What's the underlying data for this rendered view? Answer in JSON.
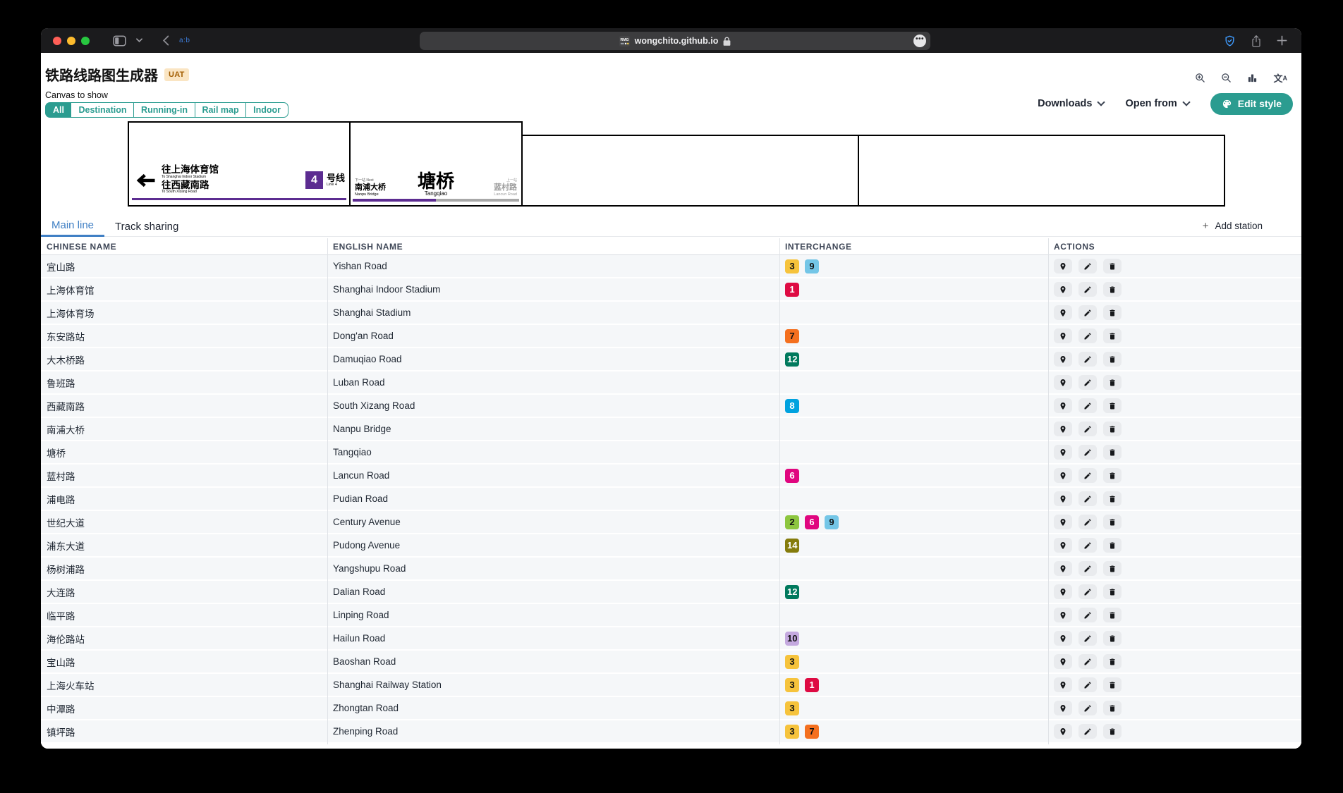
{
  "browser": {
    "url": "wongchito.github.io",
    "tab_hint": "a:b",
    "more_dots": "•••"
  },
  "app": {
    "title": "铁路线路图生成器",
    "env_badge": "UAT"
  },
  "canvas_filter": {
    "label": "Canvas to show",
    "options": [
      "All",
      "Destination",
      "Running-in",
      "Rail map",
      "Indoor"
    ],
    "active": "All"
  },
  "actions_bar": {
    "downloads": "Downloads",
    "open_from": "Open from",
    "edit_style": "Edit style"
  },
  "preview": {
    "destination": {
      "line1_zh": "往上海体育馆",
      "line1_en": "To Shanghai Indoor Stadium",
      "line2_zh": "往西藏南路",
      "line2_en": "To South Xizang Road",
      "line_number": "4",
      "line_label_zh": "号线",
      "line_label_en": "Line 4",
      "line_color": "#5c2c91"
    },
    "running_in": {
      "prev_label": "下一站 Next",
      "prev_zh": "南浦大桥",
      "prev_en": "Nanpu Bridge",
      "current_zh": "塘桥",
      "current_en": "Tangqiao",
      "next_label": "上一站",
      "next_zh": "蓝村路",
      "next_en": "Lancun Road",
      "bar_left_color": "#5c2c91",
      "bar_right_color": "#a8a8a8"
    }
  },
  "tabs": {
    "main_line": "Main line",
    "track_sharing": "Track sharing",
    "add_station": "Add station"
  },
  "table": {
    "headers": [
      "CHINESE NAME",
      "ENGLISH NAME",
      "INTERCHANGE",
      "ACTIONS"
    ],
    "rows": [
      {
        "zh": "宜山路",
        "en": "Yishan Road",
        "interchanges": [
          "3",
          "9"
        ]
      },
      {
        "zh": "上海体育馆",
        "en": "Shanghai Indoor Stadium",
        "interchanges": [
          "1"
        ]
      },
      {
        "zh": "上海体育场",
        "en": "Shanghai Stadium",
        "interchanges": []
      },
      {
        "zh": "东安路站",
        "en": "Dong'an Road",
        "interchanges": [
          "7"
        ]
      },
      {
        "zh": "大木桥路",
        "en": "Damuqiao Road",
        "interchanges": [
          "12"
        ]
      },
      {
        "zh": "鲁班路",
        "en": "Luban Road",
        "interchanges": []
      },
      {
        "zh": "西藏南路",
        "en": "South Xizang Road",
        "interchanges": [
          "8"
        ]
      },
      {
        "zh": "南浦大桥",
        "en": "Nanpu Bridge",
        "interchanges": []
      },
      {
        "zh": "塘桥",
        "en": "Tangqiao",
        "interchanges": []
      },
      {
        "zh": "蓝村路",
        "en": "Lancun Road",
        "interchanges": [
          "6"
        ]
      },
      {
        "zh": "浦电路",
        "en": "Pudian Road",
        "interchanges": []
      },
      {
        "zh": "世纪大道",
        "en": "Century Avenue",
        "interchanges": [
          "2",
          "6",
          "9"
        ]
      },
      {
        "zh": "浦东大道",
        "en": "Pudong Avenue",
        "interchanges": [
          "14"
        ]
      },
      {
        "zh": "杨树浦路",
        "en": "Yangshupu Road",
        "interchanges": []
      },
      {
        "zh": "大连路",
        "en": "Dalian Road",
        "interchanges": [
          "12"
        ]
      },
      {
        "zh": "临平路",
        "en": "Linping Road",
        "interchanges": []
      },
      {
        "zh": "海伦路站",
        "en": "Hailun Road",
        "interchanges": [
          "10"
        ]
      },
      {
        "zh": "宝山路",
        "en": "Baoshan Road",
        "interchanges": [
          "3"
        ]
      },
      {
        "zh": "上海火车站",
        "en": "Shanghai Railway Station",
        "interchanges": [
          "3",
          "1"
        ]
      },
      {
        "zh": "中潭路",
        "en": "Zhongtan Road",
        "interchanges": [
          "3"
        ]
      },
      {
        "zh": "镇坪路",
        "en": "Zhenping Road",
        "interchanges": [
          "3",
          "7"
        ]
      }
    ]
  },
  "line_colors": {
    "1": {
      "bg": "#de0b43",
      "fg": "#ffffff"
    },
    "2": {
      "bg": "#8dc63f",
      "fg": "#111111"
    },
    "3": {
      "bg": "#f6c33c",
      "fg": "#111111"
    },
    "6": {
      "bg": "#e0067f",
      "fg": "#ffffff"
    },
    "7": {
      "bg": "#f4701f",
      "fg": "#111111"
    },
    "8": {
      "bg": "#00a2df",
      "fg": "#ffffff"
    },
    "9": {
      "bg": "#74c6e7",
      "fg": "#111111"
    },
    "10": {
      "bg": "#c4a9df",
      "fg": "#111111"
    },
    "12": {
      "bg": "#00795d",
      "fg": "#ffffff"
    },
    "14": {
      "bg": "#857c0c",
      "fg": "#ffffff"
    }
  },
  "colors": {
    "accent_teal": "#2b9c90",
    "tab_active_blue": "#3f7fc4"
  }
}
